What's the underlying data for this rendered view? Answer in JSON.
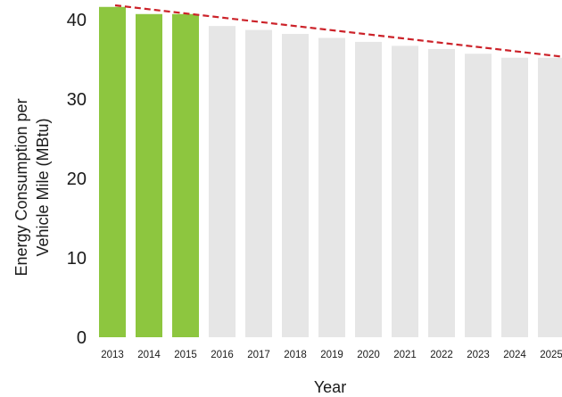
{
  "chart_data": {
    "type": "bar",
    "title": "",
    "xlabel": "Year",
    "ylabel_lines": [
      "Energy Consumption per",
      "Vehicle Mile (MBtu)"
    ],
    "ylim": [
      0,
      42
    ],
    "yticks": [
      0,
      10,
      20,
      30,
      40
    ],
    "categories": [
      "2013",
      "2014",
      "2015",
      "2016",
      "2017",
      "2018",
      "2019",
      "2020",
      "2021",
      "2022",
      "2023",
      "2024",
      "2025"
    ],
    "values": [
      41.6,
      40.7,
      40.7,
      39.2,
      38.7,
      38.2,
      37.7,
      37.2,
      36.7,
      36.3,
      35.7,
      35.2,
      35.2
    ],
    "bar_colors": [
      "#8dc63f",
      "#8dc63f",
      "#8dc63f",
      "#e6e6e6",
      "#e6e6e6",
      "#e6e6e6",
      "#e6e6e6",
      "#e6e6e6",
      "#e6e6e6",
      "#e6e6e6",
      "#e6e6e6",
      "#e6e6e6",
      "#e6e6e6"
    ],
    "trend_line": {
      "style": "dashed",
      "color": "#cc2229",
      "start": {
        "x": "2013",
        "y": 41.8
      },
      "end": {
        "x": "2025",
        "y": 35.3
      }
    },
    "grid": false,
    "legend": "none"
  }
}
